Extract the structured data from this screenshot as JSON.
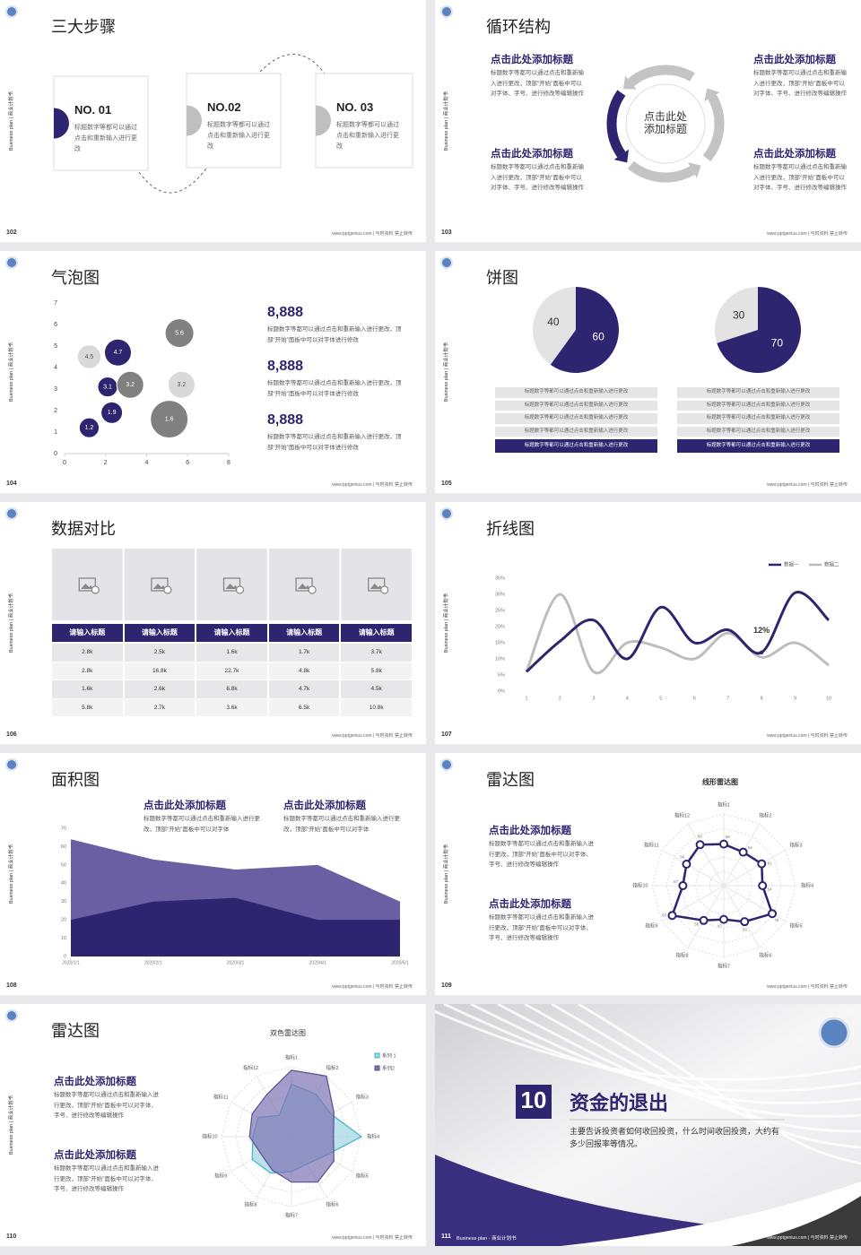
{
  "side_label": "Business plan | 商业计划书",
  "footer": "www.pptgenius.com | 与时资料 禁止转传",
  "slides": [
    {
      "page": "102",
      "title": "三大步骤",
      "steps": [
        {
          "no": "NO. 01",
          "text": "标题数字等都可以通过点击和重新输入进行更改"
        },
        {
          "no": "NO.02",
          "text": "标题数字等都可以通过点击和重新输入进行更改"
        },
        {
          "no": "NO. 03",
          "text": "标题数字等都可以通过点击和重新输入进行更改"
        }
      ]
    },
    {
      "page": "103",
      "title": "循环结构",
      "center": [
        "点击此处",
        "添加标题"
      ],
      "blocks": [
        {
          "title": "点击此处添加标题",
          "text": "标题数字等都可以通过点击和重新输入进行更改，顶部“开始”面板中可以对字体、字号、进行修改等编辑操作"
        },
        {
          "title": "点击此处添加标题",
          "text": "标题数字等都可以通过点击和重新输入进行更改，顶部“开始”面板中可以对字体、字号、进行修改等编辑操作"
        },
        {
          "title": "点击此处添加标题",
          "text": "标题数字等都可以通过点击和重新输入进行更改，顶部“开始”面板中可以对字体、字号、进行修改等编辑操作"
        },
        {
          "title": "点击此处添加标题",
          "text": "标题数字等都可以通过点击和重新输入进行更改，顶部“开始”面板中可以对字体、字号、进行修改等编辑操作"
        }
      ]
    },
    {
      "page": "104",
      "title": "气泡图",
      "chart": {
        "type": "bubble",
        "xlim": [
          0,
          8
        ],
        "xticks": [
          0,
          2,
          4,
          6,
          8
        ],
        "ylim": [
          0,
          7
        ],
        "yticks": [
          0,
          1,
          2,
          3,
          4,
          5,
          6,
          7
        ],
        "series": [
          {
            "color": "#2e2570",
            "label_color": "#ffffff",
            "x": [
              1.2,
              2.3,
              2.1,
              2.6
            ],
            "values": [
              1.2,
              1.9,
              3.1,
              4.7
            ],
            "sizes": [
              12,
              14,
              12,
              22
            ]
          },
          {
            "color": "#808080",
            "label_color": "#ffffff",
            "x": [
              3.2,
              5.1,
              5.6
            ],
            "values": [
              3.2,
              1.6,
              5.6
            ],
            "sizes": [
              22,
              43,
              25
            ]
          },
          {
            "color": "#d9d9d9",
            "label_color": "#555555",
            "x": [
              1.2,
              5.7
            ],
            "values": [
              4.5,
              3.2
            ],
            "sizes": [
              17,
              22
            ]
          }
        ]
      },
      "stats": [
        {
          "value": "8,888",
          "text": "标题数字等都可以通过点击和重新输入进行更改，顶部“开始”面板中可以对字体进行修改"
        },
        {
          "value": "8,888",
          "text": "标题数字等都可以通过点击和重新输入进行更改，顶部“开始”面板中可以对字体进行修改"
        },
        {
          "value": "8,888",
          "text": "标题数字等都可以通过点击和重新输入进行更改，顶部“开始”面板中可以对字体进行修改"
        }
      ]
    },
    {
      "page": "105",
      "title": "饼图",
      "pies": [
        {
          "type": "pie",
          "values": [
            40,
            60
          ],
          "colors": [
            "#e3e3e3",
            "#2e2570"
          ],
          "label_colors": [
            "#333333",
            "#ffffff"
          ],
          "items": [
            "标题数字等都可以通过点击和重新输入进行更改",
            "标题数字等都可以通过点击和重新输入进行更改",
            "标题数字等都可以通过点击和重新输入进行更改",
            "标题数字等都可以通过点击和重新输入进行更改",
            "标题数字等都可以通过点击和重新输入进行更改"
          ]
        },
        {
          "type": "pie",
          "values": [
            30,
            70
          ],
          "colors": [
            "#e3e3e3",
            "#2e2570"
          ],
          "label_colors": [
            "#333333",
            "#ffffff"
          ],
          "items": [
            "标题数字等都可以通过点击和重新输入进行更改",
            "标题数字等都可以通过点击和重新输入进行更改",
            "标题数字等都可以通过点击和重新输入进行更改",
            "标题数字等都可以通过点击和重新输入进行更改",
            "标题数字等都可以通过点击和重新输入进行更改"
          ]
        }
      ]
    },
    {
      "page": "106",
      "title": "数据对比",
      "table": {
        "headers": [
          "请输入标题",
          "请输入标题",
          "请输入标题",
          "请输入标题",
          "请输入标题"
        ],
        "rows": [
          [
            "2.8k",
            "2.5k",
            "1.6k",
            "1.7k",
            "3.7k"
          ],
          [
            "2.8k",
            "16.8k",
            "22.7k",
            "4.8k",
            "5.8k"
          ],
          [
            "1.6k",
            "2.6k",
            "6.8k",
            "4.7k",
            "4.5k"
          ],
          [
            "5.8k",
            "2.7k",
            "3.6k",
            "6.5k",
            "10.8k"
          ]
        ]
      }
    },
    {
      "page": "107",
      "title": "折线图",
      "chart": {
        "type": "line",
        "categories": [
          "1",
          "2",
          "3",
          "4",
          "5",
          "6",
          "7",
          "8",
          "9",
          "10"
        ],
        "ylim": [
          0,
          35
        ],
        "yticks": [
          {
            "value": 0,
            "label": "0%"
          },
          {
            "value": 5,
            "label": "5%"
          },
          {
            "value": 10,
            "label": "10%"
          },
          {
            "value": 15,
            "label": "15%"
          },
          {
            "value": 20,
            "label": "20%"
          },
          {
            "value": 25,
            "label": "25%"
          },
          {
            "value": 30,
            "label": "30%"
          },
          {
            "value": 35,
            "label": "35%"
          }
        ],
        "series": [
          {
            "name": "数据一",
            "color": "#2e2570",
            "values": [
              6,
              15.5,
              22,
              10,
              26,
              15,
              19,
              12,
              30.5,
              22
            ],
            "value_labels": [
              null,
              null,
              null,
              null,
              null,
              null,
              null,
              "12%",
              null,
              null
            ]
          },
          {
            "name": "数据二",
            "color": "#bdbdbd",
            "values": [
              6,
              30,
              6,
              15,
              13.5,
              10,
              18,
              10.5,
              15,
              8
            ]
          }
        ]
      }
    },
    {
      "page": "108",
      "title": "面积图",
      "blocks": [
        {
          "title": "点击此处添加标题",
          "text": "标题数字等都可以通过点击和重新输入进行更改，顶部“开始”面板中可以对字体"
        },
        {
          "title": "点击此处添加标题",
          "text": "标题数字等都可以通过点击和重新输入进行更改，顶部“开始”面板中可以对字体"
        }
      ],
      "chart": {
        "type": "area",
        "categories": [
          "2020/1/1",
          "2020/2/1",
          "2020/3/1",
          "2020/4/1",
          "2020/5/1"
        ],
        "ylim": [
          0,
          70
        ],
        "yticks": [
          0,
          10,
          20,
          30,
          40,
          50,
          60,
          70
        ],
        "series": [
          {
            "color": "#6b5fa3",
            "values": [
              64,
              53,
              47.5,
              50,
              30
            ]
          },
          {
            "color": "#2e2570",
            "values": [
              20,
              30,
              32,
              20,
              20
            ]
          }
        ]
      }
    },
    {
      "page": "109",
      "title": "雷达图",
      "blocks": [
        {
          "title": "点击此处添加标题",
          "text": "标题数字等都可以通过点击和重新输入进行更改，顶部“开始”面板中可以对字体、字号、进行修改等编辑操作"
        },
        {
          "title": "点击此处添加标题",
          "text": "标题数字等都可以通过点击和重新输入进行更改，顶部“开始”面板中可以对字体、字号、进行修改等编辑操作"
        }
      ],
      "chart": {
        "type": "radar",
        "title": "线形雷达图",
        "markers": true,
        "rlim": [
          0,
          100
        ],
        "rticks": [
          20,
          40,
          60,
          80,
          100
        ],
        "categories": [
          "指标1",
          "指标2",
          "指标3",
          "指标4",
          "指标5",
          "指标6",
          "指标7",
          "指标8",
          "指标9",
          "指标10",
          "指标11",
          "指标12"
        ],
        "series": [
          {
            "color": "#2e2570",
            "fill": null,
            "values": [
              58,
              54,
              61,
              54,
              78,
              58,
              47,
              56,
              83,
              57,
              60,
              66
            ]
          }
        ]
      }
    },
    {
      "page": "110",
      "title": "雷达图",
      "blocks": [
        {
          "title": "点击此处添加标题",
          "text": "标题数字等都可以通过点击和重新输入进行更改，顶部“开始”面板中可以对字体、字号、进行修改等编辑操作"
        },
        {
          "title": "点击此处添加标题",
          "text": "标题数字等都可以通过点击和重新输入进行更改，顶部“开始”面板中可以对字体、字号、进行修改等编辑操作"
        }
      ],
      "chart": {
        "type": "radar",
        "title": "双色雷达图",
        "markers": false,
        "rlim": [
          0,
          100
        ],
        "rticks": [
          20,
          40,
          60,
          80,
          100
        ],
        "categories": [
          "指标1",
          "指标2",
          "指标3",
          "指标4",
          "指标5",
          "指标6",
          "指标7",
          "指标8",
          "指标9",
          "指标10",
          "指标11",
          "指标12"
        ],
        "series": [
          {
            "name": "系列 1",
            "color": "#3fb3c8",
            "fill": "#9fd6e3",
            "values": [
              75,
              70,
              65,
              100,
              55,
              45,
              50,
              60,
              65,
              55,
              55,
              35
            ]
          },
          {
            "name": "系列2",
            "color": "#5a4f93",
            "fill": "#7d74b3",
            "values": [
              95,
              100,
              70,
              60,
              70,
              75,
              65,
              55,
              50,
              60,
              65,
              70
            ]
          }
        ]
      }
    },
    {
      "page": "111",
      "number": "10",
      "title": "资金的退出",
      "text": "主要告诉投资者如何收回投资，什么时间收回投资，大约有多少回报率等情况。",
      "brand": "Business plan · 商业计划书"
    }
  ]
}
